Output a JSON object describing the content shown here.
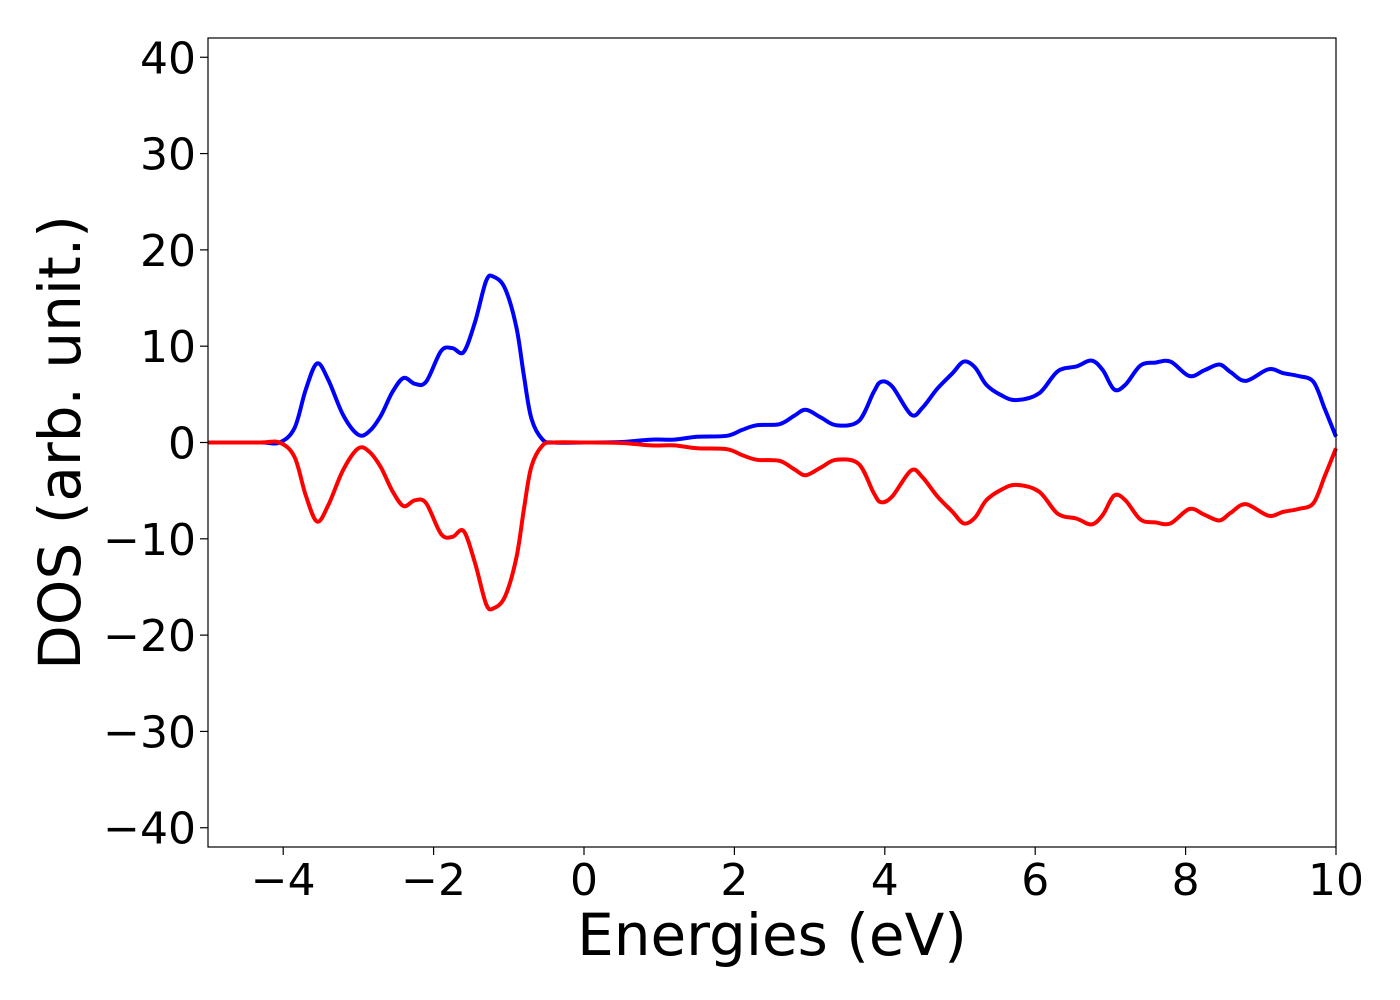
{
  "chart_data": {
    "type": "line",
    "title": "",
    "xlabel": "Energies (eV)",
    "ylabel": "DOS (arb. unit.)",
    "xlim": [
      -5,
      10
    ],
    "ylim": [
      -42,
      42
    ],
    "xticks": [
      -4,
      -2,
      0,
      2,
      4,
      6,
      8,
      10
    ],
    "xtick_labels": [
      "−4",
      "−2",
      "0",
      "2",
      "4",
      "6",
      "8",
      "10"
    ],
    "yticks": [
      40,
      30,
      20,
      10,
      0,
      -10,
      -20,
      -30,
      -40
    ],
    "ytick_labels": [
      "40",
      "30",
      "20",
      "10",
      "0",
      "−10",
      "−20",
      "−30",
      "−40"
    ],
    "grid": false,
    "legend": "none",
    "series": [
      {
        "color": "#0000ff",
        "points": [
          [
            -5.0,
            0.0
          ],
          [
            -4.3,
            0.0
          ],
          [
            -4.05,
            0.0
          ],
          [
            -3.85,
            1.5
          ],
          [
            -3.7,
            5.5
          ],
          [
            -3.55,
            8.2
          ],
          [
            -3.4,
            6.5
          ],
          [
            -3.2,
            2.8
          ],
          [
            -3.0,
            0.8
          ],
          [
            -2.85,
            1.2
          ],
          [
            -2.7,
            2.8
          ],
          [
            -2.55,
            5.2
          ],
          [
            -2.4,
            6.7
          ],
          [
            -2.25,
            6.1
          ],
          [
            -2.1,
            6.3
          ],
          [
            -1.9,
            9.5
          ],
          [
            -1.75,
            9.8
          ],
          [
            -1.6,
            9.4
          ],
          [
            -1.45,
            12.5
          ],
          [
            -1.3,
            16.8
          ],
          [
            -1.2,
            17.2
          ],
          [
            -1.05,
            16.0
          ],
          [
            -0.9,
            12.0
          ],
          [
            -0.8,
            7.0
          ],
          [
            -0.7,
            2.5
          ],
          [
            -0.55,
            0.3
          ],
          [
            -0.4,
            0.0
          ],
          [
            0.0,
            0.0
          ],
          [
            0.5,
            0.05
          ],
          [
            0.9,
            0.3
          ],
          [
            1.2,
            0.3
          ],
          [
            1.5,
            0.6
          ],
          [
            1.9,
            0.7
          ],
          [
            2.1,
            1.3
          ],
          [
            2.3,
            1.8
          ],
          [
            2.6,
            1.9
          ],
          [
            2.8,
            2.8
          ],
          [
            2.95,
            3.4
          ],
          [
            3.15,
            2.6
          ],
          [
            3.35,
            1.8
          ],
          [
            3.65,
            2.2
          ],
          [
            3.85,
            5.2
          ],
          [
            3.95,
            6.3
          ],
          [
            4.1,
            5.8
          ],
          [
            4.35,
            2.9
          ],
          [
            4.5,
            3.6
          ],
          [
            4.7,
            5.6
          ],
          [
            4.9,
            7.2
          ],
          [
            5.05,
            8.4
          ],
          [
            5.2,
            7.8
          ],
          [
            5.35,
            6.0
          ],
          [
            5.55,
            4.9
          ],
          [
            5.75,
            4.4
          ],
          [
            6.05,
            5.1
          ],
          [
            6.3,
            7.4
          ],
          [
            6.55,
            7.9
          ],
          [
            6.75,
            8.5
          ],
          [
            6.9,
            7.5
          ],
          [
            7.05,
            5.5
          ],
          [
            7.2,
            6.0
          ],
          [
            7.4,
            8.0
          ],
          [
            7.6,
            8.3
          ],
          [
            7.8,
            8.4
          ],
          [
            8.05,
            6.9
          ],
          [
            8.25,
            7.5
          ],
          [
            8.45,
            8.1
          ],
          [
            8.6,
            7.3
          ],
          [
            8.8,
            6.4
          ],
          [
            9.1,
            7.6
          ],
          [
            9.3,
            7.2
          ],
          [
            9.5,
            6.9
          ],
          [
            9.7,
            6.3
          ],
          [
            9.85,
            3.5
          ],
          [
            10.0,
            0.6
          ]
        ]
      },
      {
        "color": "#ff0000",
        "points": [
          [
            -5.0,
            0.0
          ],
          [
            -4.3,
            0.0
          ],
          [
            -4.05,
            0.0
          ],
          [
            -3.85,
            -1.5
          ],
          [
            -3.7,
            -5.5
          ],
          [
            -3.55,
            -8.2
          ],
          [
            -3.4,
            -6.5
          ],
          [
            -3.2,
            -2.8
          ],
          [
            -3.0,
            -0.6
          ],
          [
            -2.85,
            -1.0
          ],
          [
            -2.7,
            -2.6
          ],
          [
            -2.55,
            -5.0
          ],
          [
            -2.4,
            -6.6
          ],
          [
            -2.25,
            -6.0
          ],
          [
            -2.1,
            -6.3
          ],
          [
            -1.9,
            -9.5
          ],
          [
            -1.75,
            -9.8
          ],
          [
            -1.6,
            -9.2
          ],
          [
            -1.45,
            -12.5
          ],
          [
            -1.3,
            -16.8
          ],
          [
            -1.2,
            -17.2
          ],
          [
            -1.05,
            -16.0
          ],
          [
            -0.9,
            -12.0
          ],
          [
            -0.8,
            -7.0
          ],
          [
            -0.7,
            -2.5
          ],
          [
            -0.55,
            -0.3
          ],
          [
            -0.4,
            0.0
          ],
          [
            0.0,
            0.0
          ],
          [
            0.5,
            -0.05
          ],
          [
            0.9,
            -0.3
          ],
          [
            1.2,
            -0.3
          ],
          [
            1.5,
            -0.6
          ],
          [
            1.9,
            -0.7
          ],
          [
            2.1,
            -1.3
          ],
          [
            2.3,
            -1.8
          ],
          [
            2.6,
            -1.9
          ],
          [
            2.8,
            -2.8
          ],
          [
            2.95,
            -3.4
          ],
          [
            3.15,
            -2.6
          ],
          [
            3.35,
            -1.8
          ],
          [
            3.65,
            -2.2
          ],
          [
            3.85,
            -5.2
          ],
          [
            3.95,
            -6.2
          ],
          [
            4.1,
            -5.6
          ],
          [
            4.35,
            -2.9
          ],
          [
            4.5,
            -3.6
          ],
          [
            4.7,
            -5.6
          ],
          [
            4.9,
            -7.2
          ],
          [
            5.05,
            -8.4
          ],
          [
            5.2,
            -7.8
          ],
          [
            5.35,
            -6.0
          ],
          [
            5.55,
            -4.9
          ],
          [
            5.75,
            -4.4
          ],
          [
            6.05,
            -5.1
          ],
          [
            6.3,
            -7.4
          ],
          [
            6.55,
            -7.9
          ],
          [
            6.75,
            -8.5
          ],
          [
            6.9,
            -7.5
          ],
          [
            7.05,
            -5.5
          ],
          [
            7.2,
            -6.0
          ],
          [
            7.4,
            -8.0
          ],
          [
            7.6,
            -8.3
          ],
          [
            7.8,
            -8.4
          ],
          [
            8.05,
            -6.9
          ],
          [
            8.25,
            -7.5
          ],
          [
            8.45,
            -8.1
          ],
          [
            8.6,
            -7.3
          ],
          [
            8.8,
            -6.4
          ],
          [
            9.1,
            -7.6
          ],
          [
            9.3,
            -7.2
          ],
          [
            9.5,
            -6.9
          ],
          [
            9.7,
            -6.3
          ],
          [
            9.85,
            -3.5
          ],
          [
            10.0,
            -0.6
          ]
        ]
      }
    ]
  }
}
